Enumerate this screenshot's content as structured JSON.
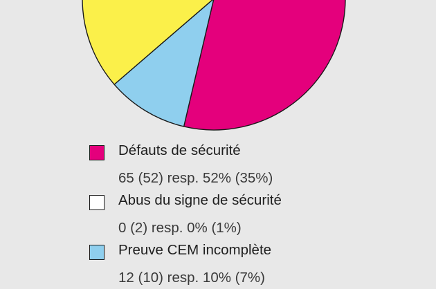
{
  "chart_data": {
    "type": "pie",
    "slices": [
      {
        "label": "Défauts de sécurité",
        "value": 65,
        "value_prev": 52,
        "percent": 52,
        "percent_prev": 35,
        "text": "65 (52) resp. 52% (35%)",
        "color": "#e4007c"
      },
      {
        "label": "Abus du signe de sécurité",
        "value": 0,
        "value_prev": 2,
        "percent": 0,
        "percent_prev": 1,
        "text": "0 (2) resp. 0% (1%)",
        "color": "#ffffff"
      },
      {
        "label": "Preuve CEM incomplète",
        "value": 12,
        "value_prev": 10,
        "percent": 10,
        "percent_prev": 7,
        "text": "12 (10) resp. 10% (7%)",
        "color": "#8fcfee"
      }
    ],
    "visible_other_slice_color": "#fbf04a",
    "visible_other_slice_percent": 20
  }
}
